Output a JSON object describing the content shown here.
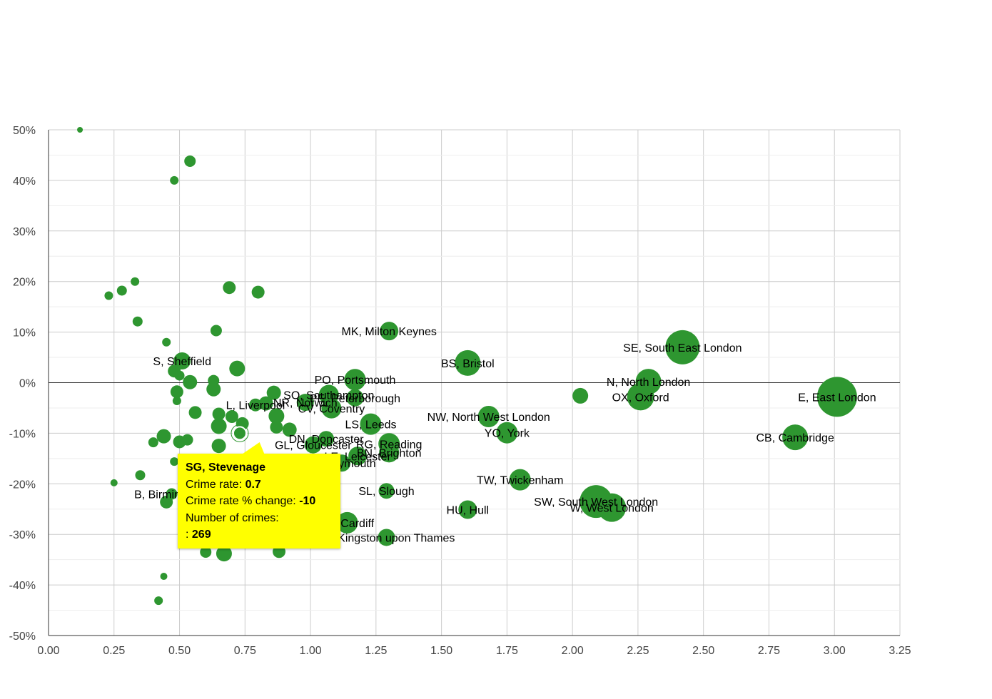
{
  "chart_data": {
    "type": "scatter",
    "title": "",
    "xlabel": "",
    "ylabel": "",
    "xlim": [
      0,
      3.25
    ],
    "ylim": [
      -50,
      50
    ],
    "x_ticks": [
      "0.00",
      "0.25",
      "0.50",
      "0.75",
      "1.00",
      "1.25",
      "1.50",
      "1.75",
      "2.00",
      "2.25",
      "2.50",
      "2.75",
      "3.00",
      "3.25"
    ],
    "y_ticks": [
      "50%",
      "40%",
      "30%",
      "20%",
      "10%",
      "0%",
      "-10%",
      "-20%",
      "-30%",
      "-40%",
      "-50%"
    ],
    "grid": true,
    "bubble_color": "#2e9630",
    "points": [
      {
        "label": "E, East London",
        "x": 3.01,
        "y": -2.8,
        "size": 28
      },
      {
        "label": "CB, Cambridge",
        "x": 2.85,
        "y": -10.8,
        "size": 18
      },
      {
        "label": "SE, South East London",
        "x": 2.42,
        "y": 7,
        "size": 24
      },
      {
        "label": "N, North London",
        "x": 2.29,
        "y": 0.2,
        "size": 18
      },
      {
        "label": "OX, Oxford",
        "x": 2.26,
        "y": -2.8,
        "size": 19
      },
      {
        "label": "",
        "x": 2.03,
        "y": -2.6,
        "size": 11
      },
      {
        "label": "SW, South West London",
        "x": 2.09,
        "y": -23.5,
        "size": 23
      },
      {
        "label": "W, West London",
        "x": 2.15,
        "y": -24.7,
        "size": 20
      },
      {
        "label": "TW, Twickenham",
        "x": 1.8,
        "y": -19.2,
        "size": 15
      },
      {
        "label": "NW, North West London",
        "x": 1.68,
        "y": -6.7,
        "size": 15
      },
      {
        "label": "YO, York",
        "x": 1.75,
        "y": -9.9,
        "size": 15
      },
      {
        "label": "BS, Bristol",
        "x": 1.6,
        "y": 3.9,
        "size": 18
      },
      {
        "label": "HU, Hull",
        "x": 1.6,
        "y": -25.1,
        "size": 13
      },
      {
        "label": "MK, Milton Keynes",
        "x": 1.3,
        "y": 10.2,
        "size": 13
      },
      {
        "label": "PO, Portsmouth",
        "x": 1.17,
        "y": 0.6,
        "size": 15
      },
      {
        "label": "LS, Leeds",
        "x": 1.23,
        "y": -8.2,
        "size": 15
      },
      {
        "label": "RG, Reading",
        "x": 1.3,
        "y": -12.1,
        "size": 15
      },
      {
        "label": "BN, Brighton",
        "x": 1.3,
        "y": -13.8,
        "size": 14
      },
      {
        "label": "SL, Slough",
        "x": 1.29,
        "y": -21.4,
        "size": 11
      },
      {
        "label": "KT, Kingston upon Thames",
        "x": 1.29,
        "y": -30.6,
        "size": 12
      },
      {
        "label": "CF, Cardiff",
        "x": 1.14,
        "y": -27.7,
        "size": 15
      },
      {
        "label": "PE, Peterborough",
        "x": 1.17,
        "y": -3,
        "size": 12
      },
      {
        "label": "SO, Southampton",
        "x": 1.07,
        "y": -2.4,
        "size": 14
      },
      {
        "label": "CV, Coventry",
        "x": 1.08,
        "y": -5.1,
        "size": 14
      },
      {
        "label": "DN, Doncaster",
        "x": 1.06,
        "y": -11.1,
        "size": 11
      },
      {
        "label": "LE, Leicester",
        "x": 1.18,
        "y": -14.5,
        "size": 13
      },
      {
        "label": "GL, Gloucester",
        "x": 1.01,
        "y": -12.3,
        "size": 12
      },
      {
        "label": "PL, Plymouth",
        "x": 1.12,
        "y": -15.9,
        "size": 12
      },
      {
        "label": "NR, Norwich",
        "x": 0.98,
        "y": -3.9,
        "size": 12
      },
      {
        "label": "",
        "x": 0.92,
        "y": -9.3,
        "size": 10
      },
      {
        "label": "",
        "x": 0.87,
        "y": -6.6,
        "size": 11
      },
      {
        "label": "",
        "x": 0.87,
        "y": -8.8,
        "size": 9
      },
      {
        "label": "",
        "x": 0.86,
        "y": -2,
        "size": 10
      },
      {
        "label": "",
        "x": 0.83,
        "y": -4.1,
        "size": 10
      },
      {
        "label": "L, Liverpool",
        "x": 0.79,
        "y": -4.4,
        "size": 9
      },
      {
        "label": "",
        "x": 0.8,
        "y": 17.9,
        "size": 9
      },
      {
        "label": "",
        "x": 0.69,
        "y": 18.8,
        "size": 9
      },
      {
        "label": "",
        "x": 0.72,
        "y": 2.8,
        "size": 11
      },
      {
        "label": "",
        "x": 0.7,
        "y": -6.7,
        "size": 9
      },
      {
        "label": "",
        "x": 0.74,
        "y": -8.1,
        "size": 9
      },
      {
        "label": "SG, Stevenage",
        "x": 0.73,
        "y": -10,
        "size": 9
      },
      {
        "label": "",
        "x": 0.78,
        "y": -14.9,
        "size": 9
      },
      {
        "label": "",
        "x": 0.65,
        "y": -6.2,
        "size": 9
      },
      {
        "label": "",
        "x": 0.65,
        "y": -8.6,
        "size": 11
      },
      {
        "label": "",
        "x": 0.65,
        "y": -12.5,
        "size": 10
      },
      {
        "label": "",
        "x": 0.64,
        "y": 10.3,
        "size": 8
      },
      {
        "label": "",
        "x": 0.63,
        "y": 0.4,
        "size": 8
      },
      {
        "label": "",
        "x": 0.63,
        "y": -1.3,
        "size": 10
      },
      {
        "label": "",
        "x": 0.56,
        "y": -5.9,
        "size": 9
      },
      {
        "label": "",
        "x": 0.54,
        "y": 43.8,
        "size": 8
      },
      {
        "label": "",
        "x": 0.54,
        "y": 0.1,
        "size": 10
      },
      {
        "label": "",
        "x": 0.53,
        "y": -11.3,
        "size": 8
      },
      {
        "label": "S, Sheffield",
        "x": 0.51,
        "y": 4.3,
        "size": 12
      },
      {
        "label": "",
        "x": 0.48,
        "y": 2.3,
        "size": 9
      },
      {
        "label": "",
        "x": 0.5,
        "y": 1.4,
        "size": 7
      },
      {
        "label": "",
        "x": 0.49,
        "y": -1.8,
        "size": 9
      },
      {
        "label": "",
        "x": 0.49,
        "y": -3.6,
        "size": 6
      },
      {
        "label": "",
        "x": 0.5,
        "y": -11.7,
        "size": 9
      },
      {
        "label": "",
        "x": 0.44,
        "y": -10.6,
        "size": 10
      },
      {
        "label": "",
        "x": 0.4,
        "y": -11.8,
        "size": 7
      },
      {
        "label": "",
        "x": 0.48,
        "y": 40,
        "size": 6
      },
      {
        "label": "",
        "x": 0.45,
        "y": 8,
        "size": 6
      },
      {
        "label": "",
        "x": 0.48,
        "y": -15.6,
        "size": 6
      },
      {
        "label": "",
        "x": 0.35,
        "y": -18.3,
        "size": 7
      },
      {
        "label": "",
        "x": 0.34,
        "y": 12.1,
        "size": 7
      },
      {
        "label": "",
        "x": 0.33,
        "y": 20,
        "size": 6
      },
      {
        "label": "",
        "x": 0.28,
        "y": 18.2,
        "size": 7
      },
      {
        "label": "",
        "x": 0.23,
        "y": 17.2,
        "size": 6
      },
      {
        "label": "",
        "x": 0.25,
        "y": -19.8,
        "size": 5
      },
      {
        "label": "",
        "x": 0.12,
        "y": 50,
        "size": 4
      },
      {
        "label": "B, Birmingham",
        "x": 0.47,
        "y": -22,
        "size": 8
      },
      {
        "label": "",
        "x": 0.45,
        "y": -23.6,
        "size": 9
      },
      {
        "label": "",
        "x": 0.44,
        "y": -38.3,
        "size": 5
      },
      {
        "label": "",
        "x": 0.42,
        "y": -43.1,
        "size": 6
      },
      {
        "label": "",
        "x": 0.6,
        "y": -33.5,
        "size": 8
      },
      {
        "label": "",
        "x": 0.67,
        "y": -33.8,
        "size": 11
      },
      {
        "label": "",
        "x": 0.88,
        "y": -33.4,
        "size": 9
      }
    ]
  },
  "tooltip": {
    "title": "SG, Stevenage",
    "rate_label": "Crime rate:",
    "rate_value": "0.7",
    "change_label": "Crime rate % change:",
    "change_value": "-10",
    "count_label": "Number of crimes:",
    "count_prefix": ":",
    "count_value": "269"
  }
}
